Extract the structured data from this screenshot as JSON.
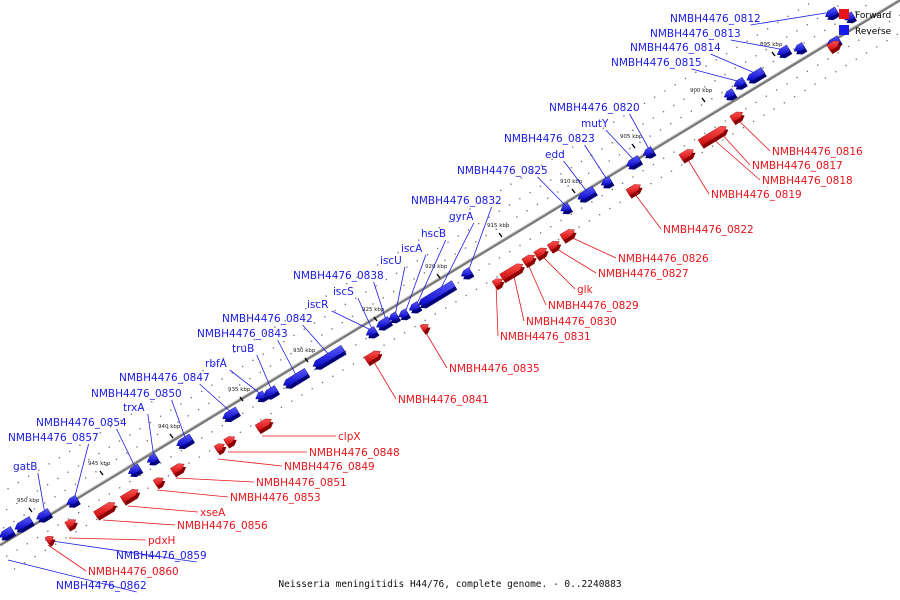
{
  "caption": "Neisseria meningitidis H44/76, complete genome. - 0..2240883",
  "legend": [
    {
      "label": "Forward",
      "color": "#e8141a"
    },
    {
      "label": "Reverse",
      "color": "#1a1ae8"
    }
  ],
  "colors": {
    "forward": "#e8141a",
    "reverse": "#1a1ae8",
    "backbone": "#888888"
  },
  "ticks": [
    "895 kbp",
    "900 kbp",
    "905 kbp",
    "910 kbp",
    "915 kbp",
    "920 kbp",
    "925 kbp",
    "930 kbp",
    "935 kbp",
    "940 kbp",
    "945 kbp",
    "950 kbp"
  ],
  "reverse_labels": [
    "NMBH4476_0812",
    "NMBH4476_0813",
    "NMBH4476_0814",
    "NMBH4476_0815",
    "NMBH4476_0820",
    "mutY",
    "NMBH4476_0823",
    "edd",
    "NMBH4476_0825",
    "NMBH4476_0832",
    "gyrA",
    "hscB",
    "iscA",
    "iscU",
    "NMBH4476_0838",
    "iscS",
    "iscR",
    "NMBH4476_0842",
    "NMBH4476_0843",
    "truB",
    "rbfA",
    "NMBH4476_0847",
    "NMBH4476_0850",
    "trxA",
    "NMBH4476_0854",
    "NMBH4476_0857",
    "gatB",
    "NMBH4476_0859",
    "NMBH4476_0862"
  ],
  "forward_labels": [
    "NMBH4476_0816",
    "NMBH4476_0817",
    "NMBH4476_0818",
    "NMBH4476_0819",
    "NMBH4476_0822",
    "NMBH4476_0826",
    "NMBH4476_0827",
    "glk",
    "NMBH4476_0829",
    "NMBH4476_0830",
    "NMBH4476_0831",
    "NMBH4476_0835",
    "NMBH4476_0841",
    "clpX",
    "NMBH4476_0848",
    "NMBH4476_0849",
    "NMBH4476_0851",
    "NMBH4476_0853",
    "xseA",
    "NMBH4476_0856",
    "pdxH",
    "NMBH4476_0860"
  ]
}
